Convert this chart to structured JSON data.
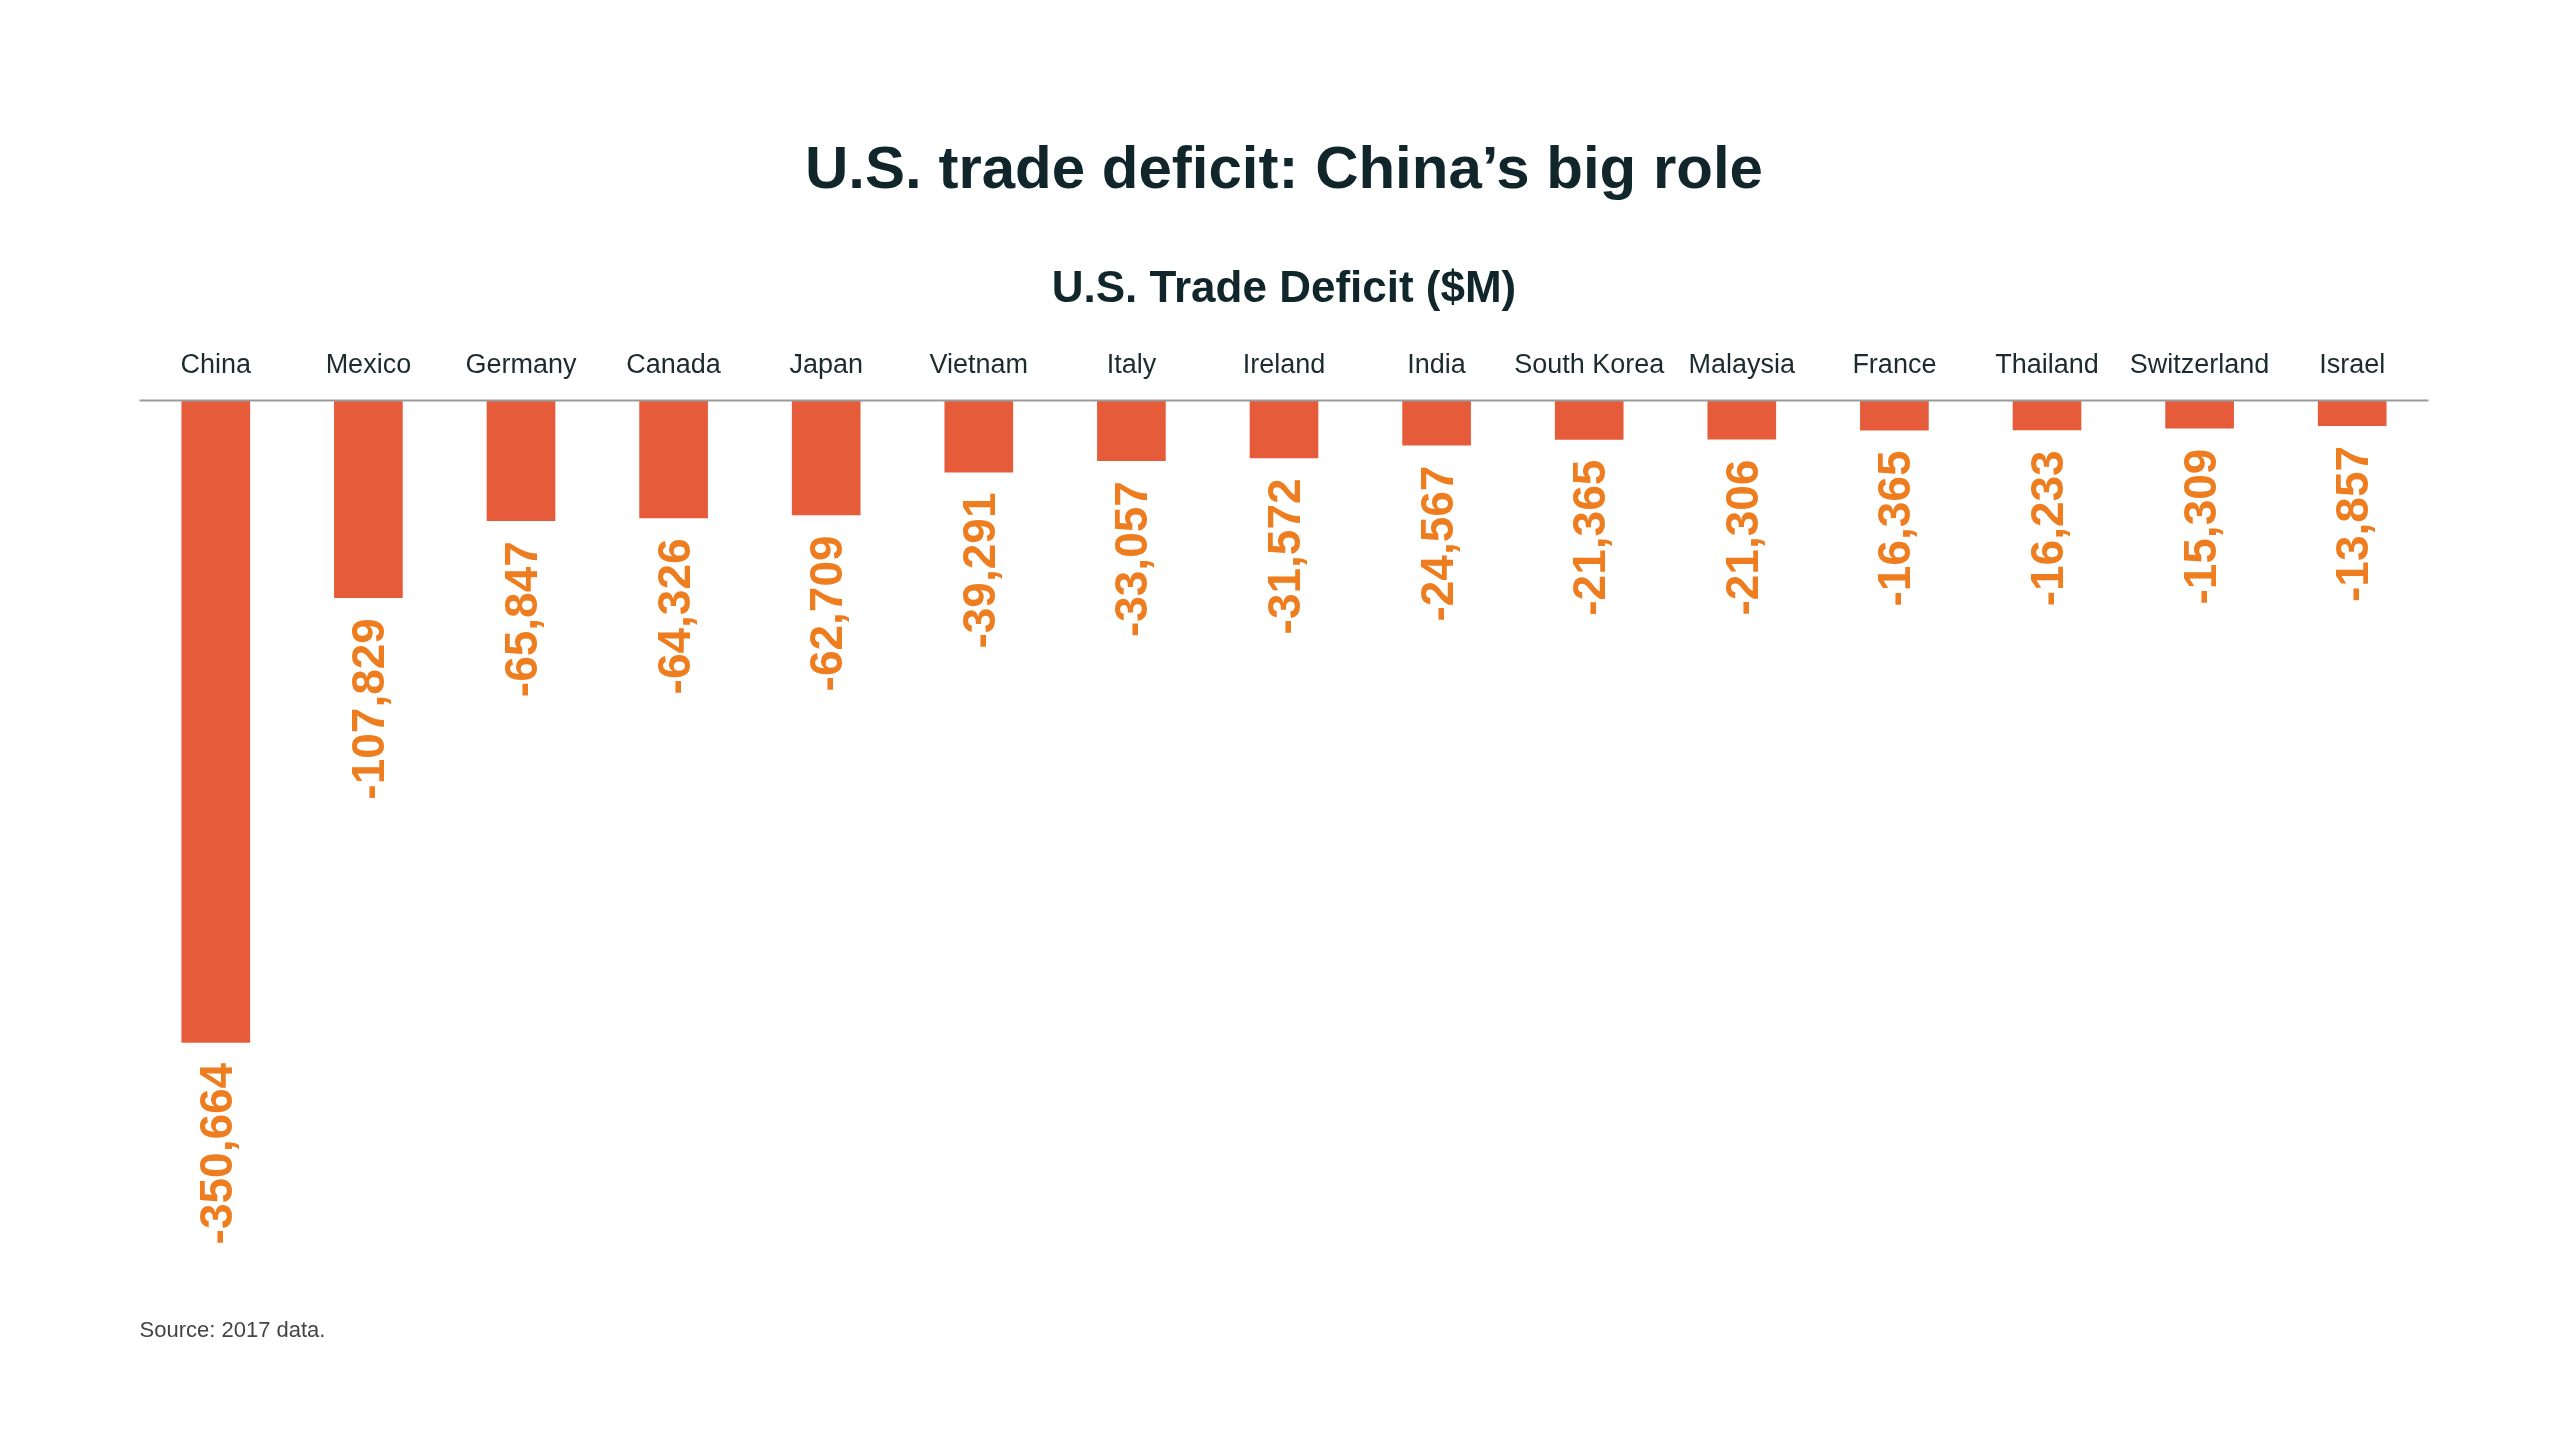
{
  "chart_data": {
    "type": "bar",
    "title": "U.S. trade deficit: China’s big role",
    "subtitle": "U.S. Trade Deficit ($M)",
    "categories": [
      "China",
      "Mexico",
      "Germany",
      "Canada",
      "Japan",
      "Vietnam",
      "Italy",
      "Ireland",
      "India",
      "South Korea",
      "Malaysia",
      "France",
      "Thailand",
      "Switzerland",
      "Israel"
    ],
    "values": [
      -350664,
      -107829,
      -65847,
      -64326,
      -62709,
      -39291,
      -33057,
      -31572,
      -24567,
      -21365,
      -21306,
      -16365,
      -16233,
      -15309,
      -13857
    ],
    "value_labels": [
      "-350,664",
      "-107,829",
      "-65,847",
      "-64,326",
      "-62,709",
      "-39,291",
      "-33,057",
      "-31,572",
      "-24,567",
      "-21,365",
      "-21,306",
      "-16,365",
      "-16,233",
      "-15,309",
      "-13,857"
    ],
    "color": "#e65c3a",
    "grid": false,
    "tick_labels": "x",
    "annotations": [
      "Source: 2017 data."
    ]
  }
}
